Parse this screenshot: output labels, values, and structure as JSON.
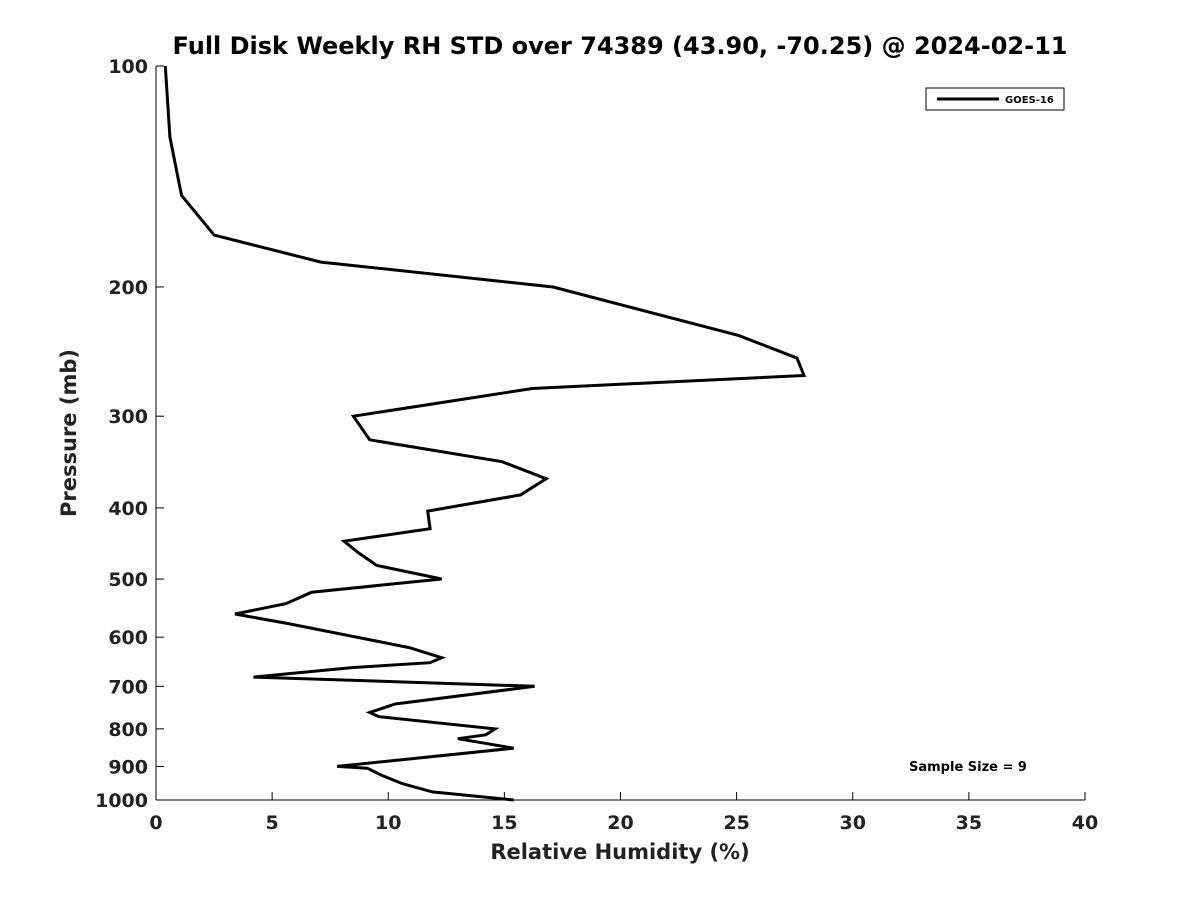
{
  "chart_data": {
    "type": "line",
    "title": "Full Disk Weekly RH STD over 74389 (43.90, -70.25) @ 2024-02-11",
    "xlabel": "Relative Humidity (%)",
    "ylabel": "Pressure (mb)",
    "xlim": [
      0,
      40
    ],
    "ylim": [
      100,
      1000
    ],
    "y_scale": "log",
    "y_inverted": true,
    "x_ticks": [
      0,
      5,
      10,
      15,
      20,
      25,
      30,
      35,
      40
    ],
    "y_ticks": [
      100,
      200,
      300,
      400,
      500,
      600,
      700,
      800,
      900,
      1000
    ],
    "grid": false,
    "legend_position": "top-right",
    "annotation": "Sample Size = 9",
    "series": [
      {
        "name": "GOES-16",
        "color": "#000000",
        "points": [
          [
            15.4,
            1000
          ],
          [
            11.9,
            975
          ],
          [
            10.6,
            950
          ],
          [
            9.7,
            925
          ],
          [
            9.1,
            905
          ],
          [
            7.8,
            900
          ],
          [
            15.4,
            850
          ],
          [
            13.0,
            825
          ],
          [
            14.2,
            815
          ],
          [
            14.6,
            800
          ],
          [
            9.6,
            770
          ],
          [
            9.2,
            760
          ],
          [
            10.3,
            740
          ],
          [
            16.3,
            700
          ],
          [
            4.2,
            680
          ],
          [
            8.5,
            660
          ],
          [
            11.8,
            650
          ],
          [
            12.3,
            640
          ],
          [
            10.9,
            620
          ],
          [
            5.7,
            575
          ],
          [
            3.4,
            558
          ],
          [
            5.6,
            540
          ],
          [
            6.7,
            521
          ],
          [
            12.3,
            500
          ],
          [
            9.5,
            479
          ],
          [
            8.7,
            460
          ],
          [
            8.1,
            444
          ],
          [
            11.8,
            427
          ],
          [
            11.7,
            404
          ],
          [
            15.7,
            384
          ],
          [
            16.8,
            365
          ],
          [
            14.9,
            346
          ],
          [
            9.2,
            323
          ],
          [
            8.5,
            300
          ],
          [
            16.2,
            275
          ],
          [
            27.9,
            264
          ],
          [
            27.6,
            250
          ],
          [
            25.1,
            233
          ],
          [
            17.1,
            200
          ],
          [
            7.1,
            185
          ],
          [
            2.5,
            170
          ],
          [
            1.1,
            150
          ],
          [
            0.6,
            125
          ],
          [
            0.4,
            100
          ]
        ]
      }
    ]
  }
}
